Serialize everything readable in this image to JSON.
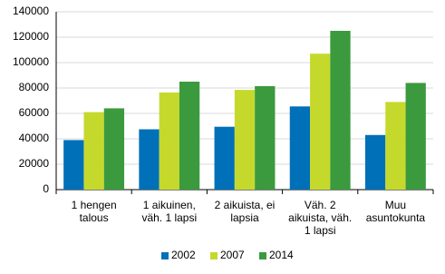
{
  "chart_data": {
    "type": "bar",
    "categories": [
      "1 hengen\ntalous",
      "1 aikuinen,\nväh. 1 lapsi",
      "2 aikuista, ei\nlapsia",
      "Väh. 2\naikuista, väh.\n1 lapsi",
      "Muu\nasuntokunta"
    ],
    "series": [
      {
        "name": "2002",
        "color": "#0070b8",
        "values": [
          39000,
          47500,
          49500,
          65500,
          43000
        ]
      },
      {
        "name": "2007",
        "color": "#c5d92d",
        "values": [
          61000,
          76500,
          78500,
          107000,
          69000
        ]
      },
      {
        "name": "2014",
        "color": "#3b9a3d",
        "values": [
          64000,
          85000,
          81500,
          125000,
          84000
        ]
      }
    ],
    "ylim": [
      0,
      140000
    ],
    "yticks": [
      0,
      20000,
      40000,
      60000,
      80000,
      100000,
      120000,
      140000
    ],
    "grid": true
  }
}
